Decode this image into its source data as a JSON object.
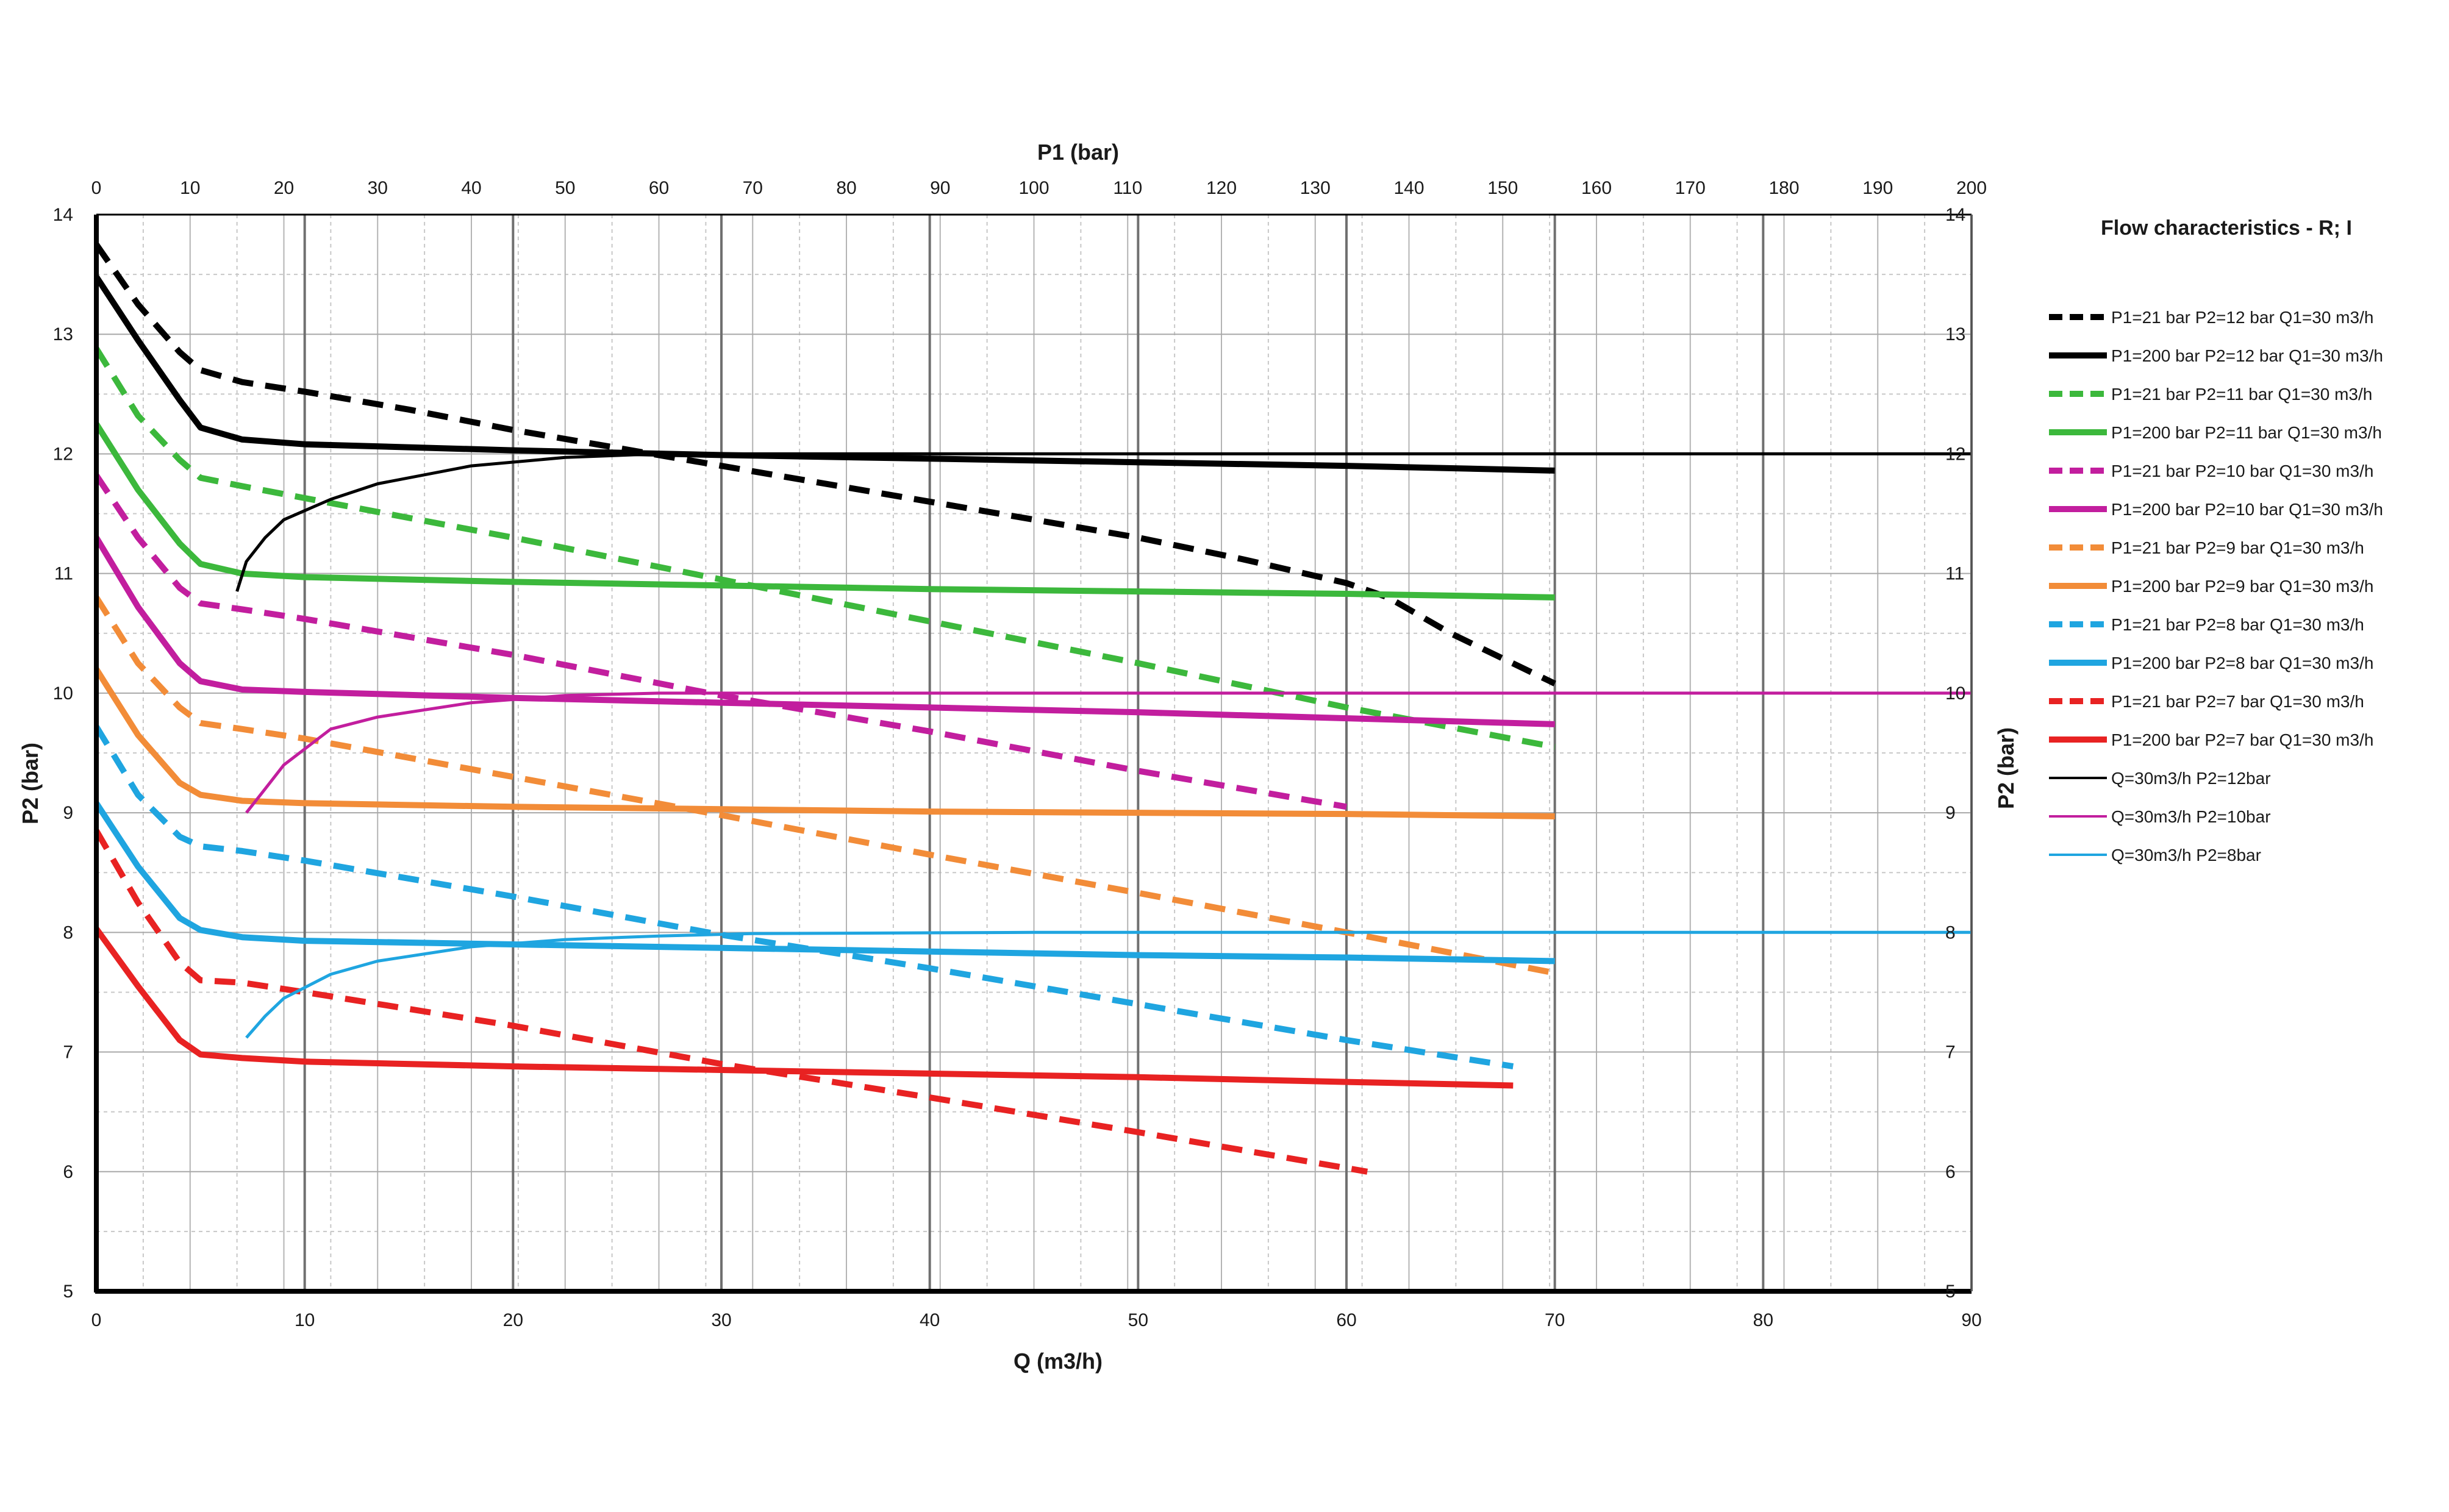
{
  "chart_data": {
    "type": "line",
    "title": "",
    "x_top_label": "P1 (bar)",
    "x_bottom_label": "Q (m3/h)",
    "y_left_label": "P2 (bar)",
    "y_right_label": "P2 (bar)",
    "x_top_range": [
      0,
      200
    ],
    "x_top_ticks": [
      0,
      10,
      20,
      30,
      40,
      50,
      60,
      70,
      80,
      90,
      100,
      110,
      120,
      130,
      140,
      150,
      160,
      170,
      180,
      190,
      200
    ],
    "x_bottom_range": [
      0,
      90
    ],
    "x_bottom_ticks": [
      0,
      10,
      20,
      30,
      40,
      50,
      60,
      70,
      80,
      90
    ],
    "y_range": [
      5,
      14
    ],
    "y_ticks": [
      5,
      6,
      7,
      8,
      9,
      10,
      11,
      12,
      13,
      14
    ],
    "grid": true,
    "legend_title": "Flow characteristics - R; I",
    "legend_position": "right",
    "series": [
      {
        "name": "P1=21 bar P2=12 bar Q1=30 m3/h",
        "axis": "Q",
        "color": "#000000",
        "style": "dashed",
        "weight": "thick",
        "x": [
          0,
          2,
          4,
          5,
          7,
          10,
          15,
          20,
          30,
          40,
          50,
          55,
          60,
          62,
          65,
          70
        ],
        "y": [
          13.75,
          13.25,
          12.85,
          12.7,
          12.6,
          12.52,
          12.37,
          12.2,
          11.9,
          11.6,
          11.3,
          11.12,
          10.92,
          10.8,
          10.5,
          10.08
        ]
      },
      {
        "name": "P1=200 bar P2=12 bar Q1=30 m3/h",
        "axis": "Q",
        "color": "#000000",
        "style": "solid",
        "weight": "thick",
        "x": [
          0,
          2,
          4,
          5,
          7,
          10,
          20,
          30,
          40,
          50,
          60,
          70
        ],
        "y": [
          13.48,
          12.95,
          12.45,
          12.22,
          12.12,
          12.08,
          12.03,
          11.99,
          11.96,
          11.93,
          11.9,
          11.86
        ]
      },
      {
        "name": "P1=21 bar P2=11 bar Q1=30 m3/h",
        "axis": "Q",
        "color": "#3cb83c",
        "style": "dashed",
        "weight": "thick",
        "x": [
          0,
          2,
          4,
          5,
          7,
          10,
          20,
          30,
          40,
          50,
          60,
          70
        ],
        "y": [
          12.88,
          12.32,
          11.95,
          11.8,
          11.73,
          11.63,
          11.3,
          10.95,
          10.6,
          10.25,
          9.88,
          9.55
        ]
      },
      {
        "name": "P1=200 bar P2=11 bar Q1=30 m3/h",
        "axis": "Q",
        "color": "#3cb83c",
        "style": "solid",
        "weight": "thick",
        "x": [
          0,
          2,
          4,
          5,
          7,
          10,
          20,
          30,
          40,
          50,
          60,
          70
        ],
        "y": [
          12.25,
          11.7,
          11.25,
          11.08,
          11.0,
          10.97,
          10.93,
          10.9,
          10.87,
          10.85,
          10.83,
          10.8
        ]
      },
      {
        "name": "P1=21 bar P2=10 bar Q1=30 m3/h",
        "axis": "Q",
        "color": "#c21e9e",
        "style": "dashed",
        "weight": "thick",
        "x": [
          0,
          2,
          4,
          5,
          7,
          10,
          20,
          30,
          40,
          50,
          60
        ],
        "y": [
          11.82,
          11.3,
          10.88,
          10.75,
          10.7,
          10.62,
          10.32,
          9.98,
          9.68,
          9.35,
          9.05
        ]
      },
      {
        "name": "P1=200 bar P2=10 bar Q1=30 m3/h",
        "axis": "Q",
        "color": "#c21e9e",
        "style": "solid",
        "weight": "thick",
        "x": [
          0,
          2,
          4,
          5,
          7,
          10,
          20,
          30,
          40,
          50,
          60,
          70
        ],
        "y": [
          11.3,
          10.72,
          10.25,
          10.1,
          10.03,
          10.01,
          9.96,
          9.92,
          9.88,
          9.84,
          9.79,
          9.74
        ]
      },
      {
        "name": "P1=21 bar P2=9 bar Q1=30 m3/h",
        "axis": "Q",
        "color": "#f28c38",
        "style": "dashed",
        "weight": "thick",
        "x": [
          0,
          2,
          4,
          5,
          7,
          10,
          20,
          30,
          40,
          50,
          60,
          70
        ],
        "y": [
          10.8,
          10.25,
          9.88,
          9.75,
          9.7,
          9.62,
          9.3,
          8.98,
          8.65,
          8.33,
          8.0,
          7.66
        ]
      },
      {
        "name": "P1=200 bar P2=9 bar Q1=30 m3/h",
        "axis": "Q",
        "color": "#f28c38",
        "style": "solid",
        "weight": "thick",
        "x": [
          0,
          2,
          4,
          5,
          7,
          10,
          20,
          30,
          40,
          50,
          60,
          70
        ],
        "y": [
          10.2,
          9.65,
          9.25,
          9.15,
          9.1,
          9.08,
          9.05,
          9.03,
          9.01,
          9.0,
          8.99,
          8.97
        ]
      },
      {
        "name": "P1=21 bar P2=8 bar Q1=30 m3/h",
        "axis": "Q",
        "color": "#1fa5e0",
        "style": "dashed",
        "weight": "thick",
        "x": [
          0,
          2,
          4,
          5,
          7,
          10,
          20,
          30,
          40,
          50,
          60,
          68
        ],
        "y": [
          9.72,
          9.15,
          8.8,
          8.72,
          8.68,
          8.6,
          8.3,
          7.98,
          7.7,
          7.4,
          7.1,
          6.88
        ]
      },
      {
        "name": "P1=200 bar P2=8 bar Q1=30 m3/h",
        "axis": "Q",
        "color": "#1fa5e0",
        "style": "solid",
        "weight": "thick",
        "x": [
          0,
          2,
          4,
          5,
          7,
          10,
          20,
          30,
          40,
          50,
          60,
          70
        ],
        "y": [
          9.08,
          8.55,
          8.12,
          8.02,
          7.96,
          7.93,
          7.9,
          7.87,
          7.84,
          7.81,
          7.79,
          7.76
        ]
      },
      {
        "name": "P1=21 bar P2=7 bar Q1=30 m3/h",
        "axis": "Q",
        "color": "#e82222",
        "style": "dashed",
        "weight": "thick",
        "x": [
          0,
          2,
          4,
          5,
          7,
          10,
          20,
          30,
          40,
          50,
          61
        ],
        "y": [
          8.85,
          8.25,
          7.75,
          7.6,
          7.58,
          7.5,
          7.22,
          6.9,
          6.62,
          6.33,
          6.0
        ]
      },
      {
        "name": "P1=200 bar P2=7 bar Q1=30 m3/h",
        "axis": "Q",
        "color": "#e82222",
        "style": "solid",
        "weight": "thick",
        "x": [
          0,
          2,
          4,
          5,
          7,
          10,
          20,
          30,
          40,
          50,
          60,
          68
        ],
        "y": [
          8.03,
          7.55,
          7.1,
          6.98,
          6.95,
          6.92,
          6.88,
          6.85,
          6.82,
          6.79,
          6.75,
          6.72
        ]
      },
      {
        "name": "Q=30m3/h P2=12bar",
        "axis": "P1",
        "color": "#000000",
        "style": "solid",
        "weight": "thin",
        "x": [
          15,
          16,
          18,
          20,
          25,
          30,
          40,
          50,
          60,
          80,
          100,
          150,
          200
        ],
        "y": [
          10.85,
          11.1,
          11.3,
          11.45,
          11.62,
          11.75,
          11.9,
          11.97,
          12.0,
          12.0,
          12.0,
          12.0,
          12.0
        ]
      },
      {
        "name": "Q=30m3/h P2=10bar",
        "axis": "P1",
        "color": "#c21e9e",
        "style": "solid",
        "weight": "thin",
        "x": [
          16,
          18,
          20,
          25,
          30,
          40,
          50,
          60,
          70,
          100,
          150,
          200
        ],
        "y": [
          9.0,
          9.2,
          9.4,
          9.7,
          9.8,
          9.92,
          9.98,
          10.0,
          10.0,
          10.0,
          10.0,
          10.0
        ]
      },
      {
        "name": "Q=30m3/h P2=8bar",
        "axis": "P1",
        "color": "#1fa5e0",
        "style": "solid",
        "weight": "thin",
        "x": [
          16,
          18,
          20,
          25,
          30,
          40,
          50,
          60,
          70,
          100,
          150,
          200
        ],
        "y": [
          7.12,
          7.3,
          7.45,
          7.65,
          7.76,
          7.88,
          7.94,
          7.97,
          7.99,
          8.0,
          8.0,
          8.0
        ]
      }
    ]
  }
}
